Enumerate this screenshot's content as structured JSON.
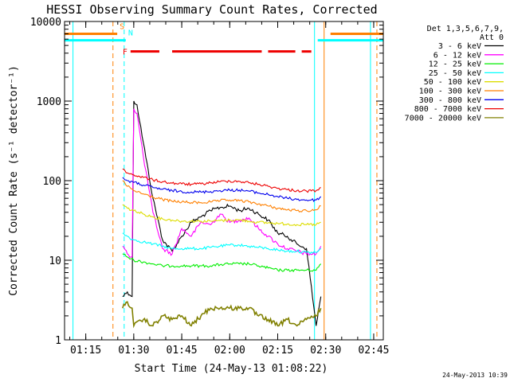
{
  "chart_data": {
    "type": "line",
    "title": "HESSI Observing Summary Count Rates, Corrected",
    "xlabel": "Start Time (24-May-13 01:08:22)",
    "ylabel": "Corrected Count Rate (s⁻¹ detector⁻¹)",
    "y_scale": "log",
    "ylim": [
      1,
      10000
    ],
    "xlim": [
      "01:08:22",
      "02:48:00"
    ],
    "x_ticks": [
      "01:15",
      "01:30",
      "01:45",
      "02:00",
      "02:15",
      "02:30",
      "02:45"
    ],
    "y_ticks": [
      "1",
      "10",
      "100",
      "1000",
      "10000"
    ],
    "grid": false,
    "legend_placement": "right",
    "legend_header": [
      "Det 1,3,5,6,7,9,",
      "Att 0"
    ],
    "footer_date": "24-May-2013 10:39",
    "series": [
      {
        "name": "3 - 6 keV",
        "color": "#000000",
        "points": [
          [
            "01:26:30",
            3.5
          ],
          [
            "01:28:00",
            4
          ],
          [
            "01:29:30",
            3.5
          ],
          [
            "01:30:00",
            1000
          ],
          [
            "01:31:00",
            900
          ],
          [
            "01:33:00",
            300
          ],
          [
            "01:36:00",
            60
          ],
          [
            "01:39:00",
            18
          ],
          [
            "01:42:00",
            13
          ],
          [
            "01:45:00",
            20
          ],
          [
            "01:48:00",
            30
          ],
          [
            "01:51:00",
            35
          ],
          [
            "01:54:00",
            42
          ],
          [
            "01:57:00",
            46
          ],
          [
            "02:00:00",
            48
          ],
          [
            "02:03:00",
            42
          ],
          [
            "02:06:00",
            45
          ],
          [
            "02:09:00",
            38
          ],
          [
            "02:12:00",
            32
          ],
          [
            "02:15:00",
            22
          ],
          [
            "02:18:00",
            20
          ],
          [
            "02:21:00",
            16
          ],
          [
            "02:24:00",
            14
          ],
          [
            "02:27:00",
            1.5
          ],
          [
            "02:28:30",
            3.5
          ]
        ]
      },
      {
        "name": "6 - 12 keV",
        "color": "#ff00ff",
        "points": [
          [
            "01:26:30",
            15
          ],
          [
            "01:28:00",
            12
          ],
          [
            "01:29:30",
            11
          ],
          [
            "01:30:00",
            800
          ],
          [
            "01:31:00",
            700
          ],
          [
            "01:33:00",
            200
          ],
          [
            "01:36:00",
            40
          ],
          [
            "01:39:00",
            14
          ],
          [
            "01:42:00",
            12
          ],
          [
            "01:45:00",
            25
          ],
          [
            "01:48:00",
            20
          ],
          [
            "01:51:00",
            30
          ],
          [
            "01:54:00",
            28
          ],
          [
            "01:57:00",
            38
          ],
          [
            "02:00:00",
            30
          ],
          [
            "02:03:00",
            32
          ],
          [
            "02:06:00",
            34
          ],
          [
            "02:09:00",
            25
          ],
          [
            "02:12:00",
            20
          ],
          [
            "02:15:00",
            16
          ],
          [
            "02:18:00",
            14
          ],
          [
            "02:21:00",
            13
          ],
          [
            "02:24:00",
            12
          ],
          [
            "02:27:00",
            12
          ],
          [
            "02:28:30",
            15
          ]
        ]
      },
      {
        "name": "12 - 25 keV",
        "color": "#00ee00",
        "points": [
          [
            "01:26:30",
            12
          ],
          [
            "01:28:00",
            11
          ],
          [
            "01:30:00",
            10
          ],
          [
            "01:33:00",
            9.5
          ],
          [
            "01:36:00",
            9
          ],
          [
            "01:39:00",
            8.5
          ],
          [
            "01:42:00",
            8.5
          ],
          [
            "01:45:00",
            8.5
          ],
          [
            "01:48:00",
            8.5
          ],
          [
            "01:51:00",
            8.5
          ],
          [
            "01:54:00",
            8.5
          ],
          [
            "01:57:00",
            8.8
          ],
          [
            "02:00:00",
            9
          ],
          [
            "02:03:00",
            9
          ],
          [
            "02:06:00",
            9
          ],
          [
            "02:09:00",
            8.5
          ],
          [
            "02:12:00",
            8
          ],
          [
            "02:15:00",
            7.5
          ],
          [
            "02:18:00",
            7.5
          ],
          [
            "02:21:00",
            7.5
          ],
          [
            "02:24:00",
            7.5
          ],
          [
            "02:27:00",
            7.5
          ],
          [
            "02:28:30",
            9
          ]
        ]
      },
      {
        "name": "25 - 50 keV",
        "color": "#00ffff",
        "points": [
          [
            "01:26:30",
            22
          ],
          [
            "01:28:00",
            20
          ],
          [
            "01:30:00",
            18
          ],
          [
            "01:33:00",
            17
          ],
          [
            "01:36:00",
            16
          ],
          [
            "01:39:00",
            15
          ],
          [
            "01:42:00",
            14
          ],
          [
            "01:45:00",
            14
          ],
          [
            "01:48:00",
            14
          ],
          [
            "01:51:00",
            14
          ],
          [
            "01:54:00",
            14.5
          ],
          [
            "01:57:00",
            15
          ],
          [
            "02:00:00",
            15.5
          ],
          [
            "02:03:00",
            15.5
          ],
          [
            "02:06:00",
            15
          ],
          [
            "02:09:00",
            14.5
          ],
          [
            "02:12:00",
            14
          ],
          [
            "02:15:00",
            13.5
          ],
          [
            "02:18:00",
            13
          ],
          [
            "02:21:00",
            13
          ],
          [
            "02:24:00",
            12.5
          ],
          [
            "02:27:00",
            12.5
          ],
          [
            "02:28:30",
            14
          ]
        ]
      },
      {
        "name": "50 - 100 keV",
        "color": "#dddd00",
        "points": [
          [
            "01:26:30",
            50
          ],
          [
            "01:28:00",
            45
          ],
          [
            "01:30:00",
            42
          ],
          [
            "01:33:00",
            38
          ],
          [
            "01:36:00",
            35
          ],
          [
            "01:39:00",
            33
          ],
          [
            "01:42:00",
            32
          ],
          [
            "01:45:00",
            31
          ],
          [
            "01:48:00",
            31
          ],
          [
            "01:51:00",
            31
          ],
          [
            "01:54:00",
            31
          ],
          [
            "01:57:00",
            31.5
          ],
          [
            "02:00:00",
            32
          ],
          [
            "02:03:00",
            32
          ],
          [
            "02:06:00",
            31
          ],
          [
            "02:09:00",
            30
          ],
          [
            "02:12:00",
            29.5
          ],
          [
            "02:15:00",
            29
          ],
          [
            "02:18:00",
            28.5
          ],
          [
            "02:21:00",
            28
          ],
          [
            "02:24:00",
            28
          ],
          [
            "02:27:00",
            28
          ],
          [
            "02:28:30",
            30
          ]
        ]
      },
      {
        "name": "100 - 300 keV",
        "color": "#ff8000",
        "points": [
          [
            "01:26:30",
            100
          ],
          [
            "01:28:00",
            85
          ],
          [
            "01:30:00",
            75
          ],
          [
            "01:33:00",
            68
          ],
          [
            "01:36:00",
            62
          ],
          [
            "01:39:00",
            58
          ],
          [
            "01:42:00",
            55
          ],
          [
            "01:45:00",
            54
          ],
          [
            "01:48:00",
            53
          ],
          [
            "01:51:00",
            53
          ],
          [
            "01:54:00",
            54
          ],
          [
            "01:57:00",
            56
          ],
          [
            "02:00:00",
            57
          ],
          [
            "02:03:00",
            56
          ],
          [
            "02:06:00",
            54
          ],
          [
            "02:09:00",
            51
          ],
          [
            "02:12:00",
            48
          ],
          [
            "02:15:00",
            45
          ],
          [
            "02:18:00",
            43
          ],
          [
            "02:21:00",
            42
          ],
          [
            "02:24:00",
            42
          ],
          [
            "02:27:00",
            43
          ],
          [
            "02:28:30",
            48
          ]
        ]
      },
      {
        "name": "300 - 800 keV",
        "color": "#0000ee",
        "points": [
          [
            "01:26:30",
            110
          ],
          [
            "01:28:00",
            100
          ],
          [
            "01:30:00",
            95
          ],
          [
            "01:33:00",
            88
          ],
          [
            "01:36:00",
            82
          ],
          [
            "01:39:00",
            78
          ],
          [
            "01:42:00",
            75
          ],
          [
            "01:45:00",
            73
          ],
          [
            "01:48:00",
            72
          ],
          [
            "01:51:00",
            72
          ],
          [
            "01:54:00",
            73
          ],
          [
            "01:57:00",
            75
          ],
          [
            "02:00:00",
            76
          ],
          [
            "02:03:00",
            76
          ],
          [
            "02:06:00",
            74
          ],
          [
            "02:09:00",
            70
          ],
          [
            "02:12:00",
            67
          ],
          [
            "02:15:00",
            63
          ],
          [
            "02:18:00",
            60
          ],
          [
            "02:21:00",
            58
          ],
          [
            "02:24:00",
            57
          ],
          [
            "02:27:00",
            57
          ],
          [
            "02:28:30",
            63
          ]
        ]
      },
      {
        "name": "800 - 7000 keV",
        "color": "#ee0000",
        "points": [
          [
            "01:26:30",
            140
          ],
          [
            "01:28:00",
            125
          ],
          [
            "01:30:00",
            118
          ],
          [
            "01:33:00",
            110
          ],
          [
            "01:36:00",
            102
          ],
          [
            "01:39:00",
            97
          ],
          [
            "01:42:00",
            93
          ],
          [
            "01:45:00",
            91
          ],
          [
            "01:48:00",
            90
          ],
          [
            "01:51:00",
            91
          ],
          [
            "01:54:00",
            94
          ],
          [
            "01:57:00",
            97
          ],
          [
            "02:00:00",
            99
          ],
          [
            "02:03:00",
            98
          ],
          [
            "02:06:00",
            94
          ],
          [
            "02:09:00",
            90
          ],
          [
            "02:12:00",
            85
          ],
          [
            "02:15:00",
            80
          ],
          [
            "02:18:00",
            77
          ],
          [
            "02:21:00",
            75
          ],
          [
            "02:24:00",
            74
          ],
          [
            "02:27:00",
            75
          ],
          [
            "02:28:30",
            82
          ]
        ]
      },
      {
        "name": "7000 - 20000 keV",
        "color": "#808000",
        "points": [
          [
            "01:26:30",
            2.5
          ],
          [
            "01:28:00",
            3
          ],
          [
            "01:29:30",
            2.5
          ],
          [
            "01:30:00",
            1.5
          ],
          [
            "01:33:00",
            1.8
          ],
          [
            "01:36:00",
            1.5
          ],
          [
            "01:39:00",
            2
          ],
          [
            "01:42:00",
            1.8
          ],
          [
            "01:45:00",
            2
          ],
          [
            "01:48:00",
            1.5
          ],
          [
            "01:51:00",
            2
          ],
          [
            "01:54:00",
            2.5
          ],
          [
            "01:57:00",
            2.5
          ],
          [
            "02:00:00",
            2.5
          ],
          [
            "02:03:00",
            2.5
          ],
          [
            "02:06:00",
            2.5
          ],
          [
            "02:09:00",
            2
          ],
          [
            "02:12:00",
            1.8
          ],
          [
            "02:15:00",
            1.5
          ],
          [
            "02:18:00",
            1.8
          ],
          [
            "02:21:00",
            1.5
          ],
          [
            "02:24:00",
            1.8
          ],
          [
            "02:27:00",
            2
          ],
          [
            "02:28:30",
            2.5
          ]
        ]
      }
    ],
    "annotations": {
      "markers": [
        {
          "label": "S",
          "color": "#ff8000",
          "level": 7000,
          "segments": [
            [
              "01:08:22",
              "01:24:50"
            ],
            [
              "02:31:30",
              "02:48:00"
            ]
          ],
          "verticals": [
            "01:24:50",
            "02:31:30"
          ]
        },
        {
          "label": "N",
          "color": "#00ffff",
          "level": 5800,
          "segments": [
            [
              "01:08:22",
              "01:27:30"
            ],
            [
              "02:27:30",
              "02:48:00"
            ]
          ],
          "verticals": [
            "01:27:30",
            "02:27:30"
          ]
        },
        {
          "label": "F",
          "color": "#ee0000",
          "level": 4200,
          "segments": [
            [
              "01:29:00",
              "01:38:00"
            ],
            [
              "01:42:00",
              "02:10:00"
            ],
            [
              "02:12:00",
              "02:20:30"
            ],
            [
              "02:22:30",
              "02:25:30"
            ]
          ],
          "verticals": []
        }
      ],
      "boundaries": [
        {
          "time": "01:11:00",
          "color": "#00ffff",
          "style": "solid"
        },
        {
          "time": "01:23:30",
          "color": "#ff8000",
          "style": "dashed"
        },
        {
          "time": "01:27:00",
          "color": "#00ffff",
          "style": "dashed"
        },
        {
          "time": "02:26:30",
          "color": "#00ffff",
          "style": "solid"
        },
        {
          "time": "02:29:30",
          "color": "#ff8000",
          "style": "solid"
        },
        {
          "time": "02:44:00",
          "color": "#00ffff",
          "style": "solid"
        },
        {
          "time": "02:46:00",
          "color": "#ff8000",
          "style": "dashed"
        }
      ]
    }
  }
}
